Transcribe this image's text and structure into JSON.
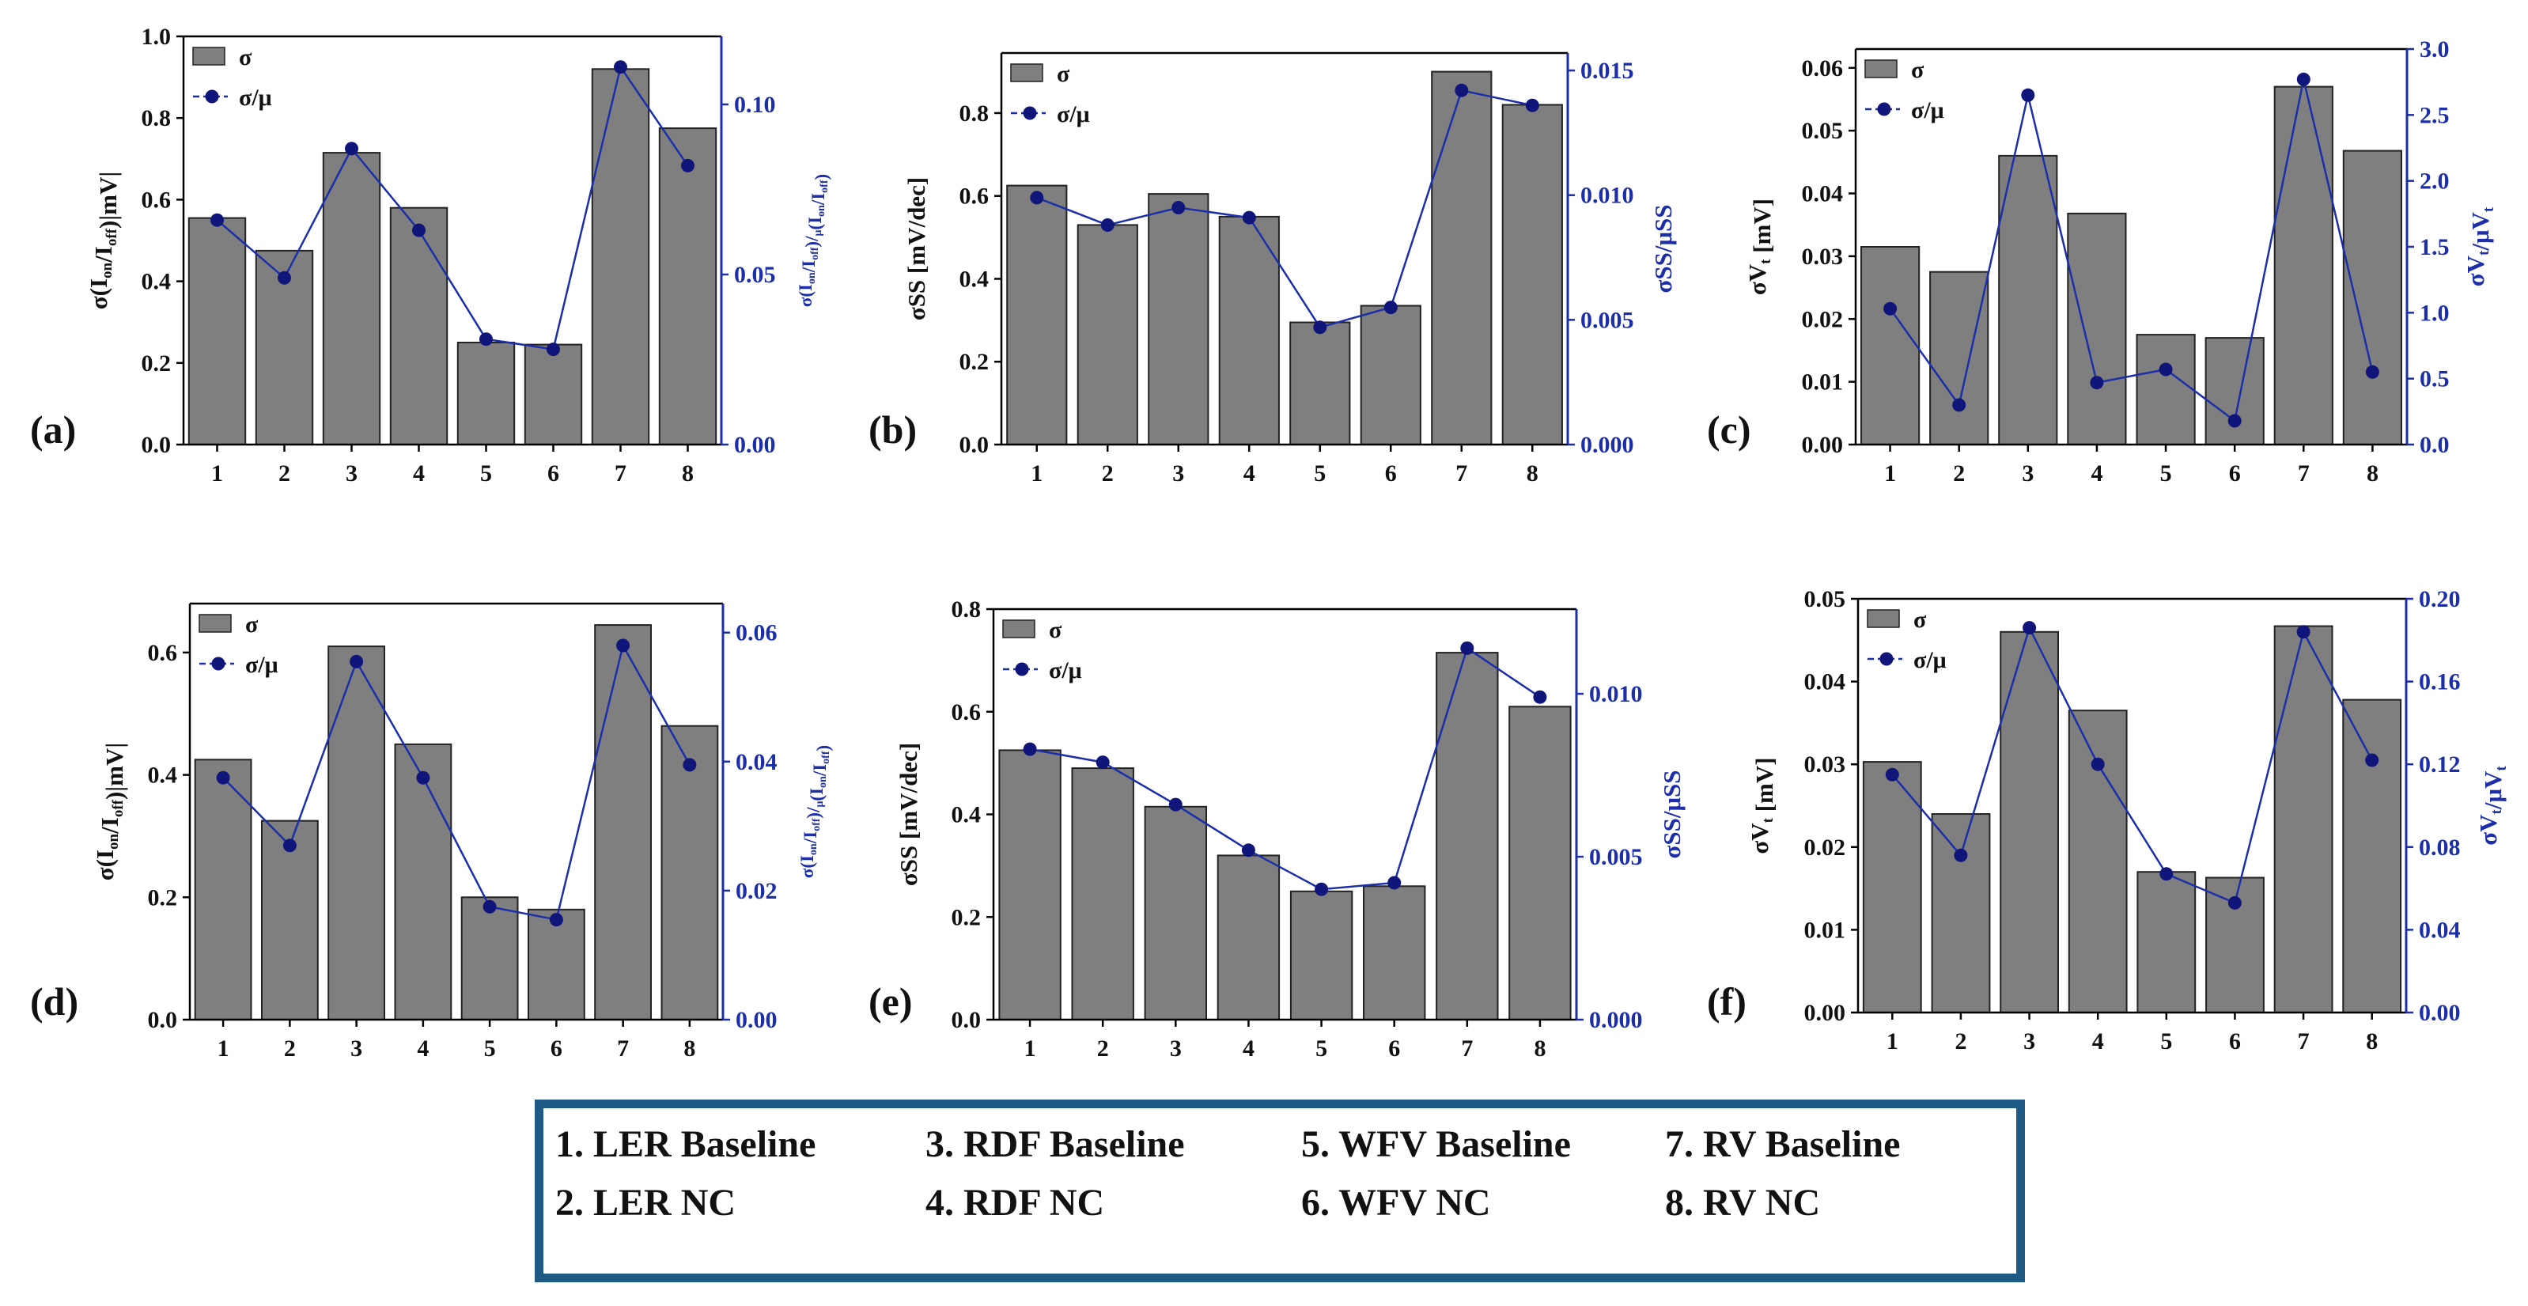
{
  "colors": {
    "bar": "#7f7f7f",
    "bar_edge": "#222222",
    "line": "#1c2ea8",
    "marker": "#10157a",
    "right_axis": "#1c2ea8",
    "legend_border": "#1f5a85"
  },
  "chart_data": [
    {
      "panel": "(a)",
      "type": "bar",
      "categories": [
        "1",
        "2",
        "3",
        "4",
        "5",
        "6",
        "7",
        "8"
      ],
      "ylabel": "σ(Ion/Ioff)|mV|",
      "ylabel_parts": [
        [
          "σ(I",
          ""
        ],
        [
          "on",
          "sub"
        ],
        [
          "/I",
          ""
        ],
        [
          "off",
          "sub"
        ],
        [
          ")|mV|",
          ""
        ]
      ],
      "ylim": [
        0,
        1.0
      ],
      "yticks": [
        0.0,
        0.2,
        0.4,
        0.6,
        0.8,
        1.0
      ],
      "ytick_labels": [
        "0.0",
        "0.2",
        "0.4",
        "0.6",
        "0.8",
        "1.0"
      ],
      "y2label": "σ(Ion/Ioff)/μ(Ion/Ioff)",
      "y2label_parts": [
        [
          "σ(I",
          ""
        ],
        [
          "on",
          "sub"
        ],
        [
          "/I",
          ""
        ],
        [
          "off",
          "sub"
        ],
        [
          ")/",
          ""
        ],
        [
          "μ",
          "sub"
        ],
        [
          "(I",
          ""
        ],
        [
          "on",
          "sub"
        ],
        [
          "/I",
          ""
        ],
        [
          "off",
          "sub"
        ],
        [
          ")",
          ""
        ]
      ],
      "y2lim": [
        0,
        0.12
      ],
      "y2ticks": [
        0.0,
        0.05,
        0.1
      ],
      "y2tick_labels": [
        "0.00",
        "0.05",
        "0.10"
      ],
      "series": [
        {
          "name": "σ",
          "kind": "bar",
          "values": [
            0.555,
            0.475,
            0.715,
            0.58,
            0.25,
            0.245,
            0.92,
            0.775
          ]
        },
        {
          "name": "σ/μ",
          "kind": "line",
          "values": [
            0.066,
            0.049,
            0.087,
            0.063,
            0.031,
            0.028,
            0.111,
            0.082
          ]
        }
      ]
    },
    {
      "panel": "(b)",
      "type": "bar",
      "categories": [
        "1",
        "2",
        "3",
        "4",
        "5",
        "6",
        "7",
        "8"
      ],
      "ylabel": "σSS [mV/dec]",
      "ylabel_parts": [
        [
          "σSS [mV/dec]",
          ""
        ]
      ],
      "ylim": [
        0,
        0.945
      ],
      "yticks": [
        0.0,
        0.2,
        0.4,
        0.6,
        0.8
      ],
      "ytick_labels": [
        "0.0",
        "0.2",
        "0.4",
        "0.6",
        "0.8"
      ],
      "y2label": "σSS/μSS",
      "y2label_parts": [
        [
          "σSS/μSS",
          ""
        ]
      ],
      "y2lim": [
        0,
        0.0157
      ],
      "y2ticks": [
        0.0,
        0.005,
        0.01,
        0.015
      ],
      "y2tick_labels": [
        "0.000",
        "0.005",
        "0.010",
        "0.015"
      ],
      "series": [
        {
          "name": "σ",
          "kind": "bar",
          "values": [
            0.625,
            0.53,
            0.605,
            0.55,
            0.295,
            0.335,
            0.9,
            0.82
          ]
        },
        {
          "name": "σ/μ",
          "kind": "line",
          "values": [
            0.0099,
            0.0088,
            0.0095,
            0.0091,
            0.0047,
            0.0055,
            0.0142,
            0.0136
          ]
        }
      ]
    },
    {
      "panel": "(c)",
      "type": "bar",
      "categories": [
        "1",
        "2",
        "3",
        "4",
        "5",
        "6",
        "7",
        "8"
      ],
      "ylabel": "σVt [mV]",
      "ylabel_parts": [
        [
          "σV",
          ""
        ],
        [
          "t",
          "sub"
        ],
        [
          " [mV]",
          ""
        ]
      ],
      "ylim": [
        0,
        0.063
      ],
      "yticks": [
        0.0,
        0.01,
        0.02,
        0.03,
        0.04,
        0.05,
        0.06
      ],
      "ytick_labels": [
        "0.00",
        "0.01",
        "0.02",
        "0.03",
        "0.04",
        "0.05",
        "0.06"
      ],
      "y2label": "σVt/μVt",
      "y2label_parts": [
        [
          "σV",
          ""
        ],
        [
          "t",
          "sub"
        ],
        [
          "/μV",
          ""
        ],
        [
          "t",
          "sub"
        ]
      ],
      "y2lim": [
        0,
        3.0
      ],
      "y2ticks": [
        0.0,
        0.5,
        1.0,
        1.5,
        2.0,
        2.5,
        3.0
      ],
      "y2tick_labels": [
        "0.0",
        "0.5",
        "1.0",
        "1.5",
        "2.0",
        "2.5",
        "3.0"
      ],
      "series": [
        {
          "name": "σ",
          "kind": "bar",
          "values": [
            0.0315,
            0.0275,
            0.046,
            0.0368,
            0.0175,
            0.017,
            0.057,
            0.0468
          ]
        },
        {
          "name": "σ/μ",
          "kind": "line",
          "values": [
            1.03,
            0.3,
            2.65,
            0.47,
            0.57,
            0.18,
            2.77,
            0.55
          ]
        }
      ]
    },
    {
      "panel": "(d)",
      "type": "bar",
      "categories": [
        "1",
        "2",
        "3",
        "4",
        "5",
        "6",
        "7",
        "8"
      ],
      "ylabel": "σ(Ion/Ioff)|mV|",
      "ylabel_parts": [
        [
          "σ(I",
          ""
        ],
        [
          "on",
          "sub"
        ],
        [
          "/I",
          ""
        ],
        [
          "off",
          "sub"
        ],
        [
          ")|mV|",
          ""
        ]
      ],
      "ylim": [
        0,
        0.68
      ],
      "yticks": [
        0.0,
        0.2,
        0.4,
        0.6
      ],
      "ytick_labels": [
        "0.0",
        "0.2",
        "0.4",
        "0.6"
      ],
      "y2label": "σ(Ion/Ioff)/μ(Ion/Ioff)",
      "y2label_parts": [
        [
          "σ(I",
          ""
        ],
        [
          "on",
          "sub"
        ],
        [
          "/I",
          ""
        ],
        [
          "off",
          "sub"
        ],
        [
          ")/",
          ""
        ],
        [
          "μ",
          "sub"
        ],
        [
          "(I",
          ""
        ],
        [
          "on",
          "sub"
        ],
        [
          "/I",
          ""
        ],
        [
          "off",
          "sub"
        ],
        [
          ")",
          ""
        ]
      ],
      "y2lim": [
        0,
        0.0645
      ],
      "y2ticks": [
        0.0,
        0.02,
        0.04,
        0.06
      ],
      "y2tick_labels": [
        "0.00",
        "0.02",
        "0.04",
        "0.06"
      ],
      "series": [
        {
          "name": "σ",
          "kind": "bar",
          "values": [
            0.425,
            0.325,
            0.61,
            0.45,
            0.2,
            0.18,
            0.645,
            0.48
          ]
        },
        {
          "name": "σ/μ",
          "kind": "line",
          "values": [
            0.0375,
            0.027,
            0.0555,
            0.0375,
            0.0175,
            0.0155,
            0.058,
            0.0395
          ]
        }
      ]
    },
    {
      "panel": "(e)",
      "type": "bar",
      "categories": [
        "1",
        "2",
        "3",
        "4",
        "5",
        "6",
        "7",
        "8"
      ],
      "ylabel": "σSS [mV/dec]",
      "ylabel_parts": [
        [
          "σSS [mV/dec]",
          ""
        ]
      ],
      "ylim": [
        0,
        0.8
      ],
      "yticks": [
        0.0,
        0.2,
        0.4,
        0.6,
        0.8
      ],
      "ytick_labels": [
        "0.0",
        "0.2",
        "0.4",
        "0.6",
        "0.8"
      ],
      "y2label": "σSS/μSS",
      "y2label_parts": [
        [
          "σSS/μSS",
          ""
        ]
      ],
      "y2lim": [
        0,
        0.0126
      ],
      "y2ticks": [
        0.0,
        0.005,
        0.01
      ],
      "y2tick_labels": [
        "0.000",
        "0.005",
        "0.010"
      ],
      "series": [
        {
          "name": "σ",
          "kind": "bar",
          "values": [
            0.525,
            0.49,
            0.415,
            0.32,
            0.25,
            0.26,
            0.715,
            0.61
          ]
        },
        {
          "name": "σ/μ",
          "kind": "line",
          "values": [
            0.0083,
            0.0079,
            0.0066,
            0.0052,
            0.004,
            0.0042,
            0.0114,
            0.0099
          ]
        }
      ]
    },
    {
      "panel": "(f)",
      "type": "bar",
      "categories": [
        "1",
        "2",
        "3",
        "4",
        "5",
        "6",
        "7",
        "8"
      ],
      "ylabel": "σVt [mV]",
      "ylabel_parts": [
        [
          "σV",
          ""
        ],
        [
          "t",
          "sub"
        ],
        [
          " [mV]",
          ""
        ]
      ],
      "ylim": [
        0,
        0.05
      ],
      "yticks": [
        0.0,
        0.01,
        0.02,
        0.03,
        0.04,
        0.05
      ],
      "ytick_labels": [
        "0.00",
        "0.01",
        "0.02",
        "0.03",
        "0.04",
        "0.05"
      ],
      "y2label": "σVt/μVt",
      "y2label_parts": [
        [
          "σV",
          ""
        ],
        [
          "t",
          "sub"
        ],
        [
          "/μV",
          ""
        ],
        [
          "t",
          "sub"
        ]
      ],
      "y2lim": [
        0,
        0.2
      ],
      "y2ticks": [
        0.0,
        0.04,
        0.08,
        0.12,
        0.16,
        0.2
      ],
      "y2tick_labels": [
        "0.00",
        "0.04",
        "0.08",
        "0.12",
        "0.16",
        "0.20"
      ],
      "series": [
        {
          "name": "σ",
          "kind": "bar",
          "values": [
            0.0303,
            0.024,
            0.046,
            0.0365,
            0.017,
            0.0163,
            0.0467,
            0.0378
          ]
        },
        {
          "name": "σ/μ",
          "kind": "line",
          "values": [
            0.115,
            0.076,
            0.186,
            0.12,
            0.067,
            0.053,
            0.184,
            0.122
          ]
        }
      ]
    }
  ],
  "legend_labels": {
    "bar": "σ",
    "line": "σ/μ"
  },
  "key": {
    "items": [
      "1. LER Baseline",
      "2. LER NC",
      "3. RDF Baseline",
      "4. RDF NC",
      "5. WFV Baseline",
      "6. WFV NC",
      "7. RV Baseline",
      "8. RV NC"
    ]
  }
}
